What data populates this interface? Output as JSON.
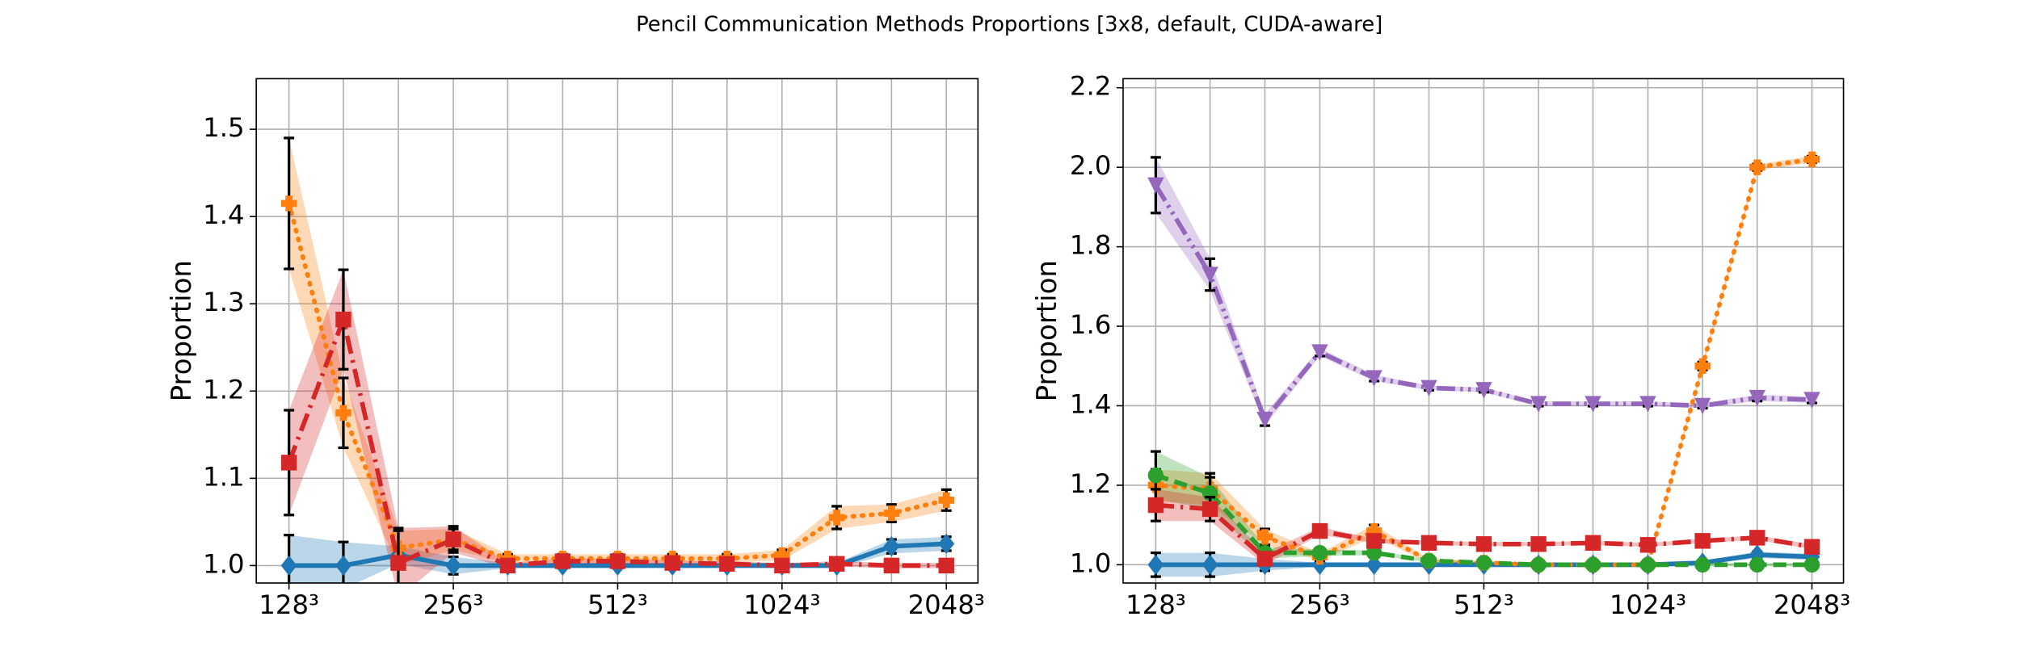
{
  "title": "Pencil Communication Methods Proportions [3x8, default, CUDA-aware]",
  "chart_data": [
    {
      "type": "line",
      "ylabel": "Proportion",
      "xscale": "log",
      "grid": true,
      "x": [
        128,
        161,
        203,
        256,
        322,
        406,
        512,
        645,
        812,
        1024,
        1290,
        1625,
        2048
      ],
      "xlim": [
        111.5,
        2340
      ],
      "xticks": [
        {
          "value": 128,
          "label": "128³"
        },
        {
          "value": 256,
          "label": "256³"
        },
        {
          "value": 512,
          "label": "512³"
        },
        {
          "value": 1024,
          "label": "1024³"
        },
        {
          "value": 2048,
          "label": "2048³"
        }
      ],
      "ylim": [
        0.98,
        1.558
      ],
      "yticks": [
        {
          "value": 1.0,
          "label": "1.0"
        },
        {
          "value": 1.1,
          "label": "1.1"
        },
        {
          "value": 1.2,
          "label": "1.2"
        },
        {
          "value": 1.3,
          "label": "1.3"
        },
        {
          "value": 1.4,
          "label": "1.4"
        },
        {
          "value": 1.5,
          "label": "1.5"
        }
      ],
      "series": [
        {
          "color": "#1f77b4",
          "linestyle": "solid",
          "marker": "diamond",
          "values": [
            1.0,
            1.0,
            1.012,
            1.0,
            1.0,
            1.0,
            1.0,
            1.0,
            1.0,
            1.0,
            1.0,
            1.022,
            1.025
          ],
          "errors": [
            0.035,
            0.027,
            0.01,
            0.01,
            0.003,
            0.003,
            0.003,
            0.003,
            0.003,
            0.003,
            0.003,
            0.008,
            0.008
          ]
        },
        {
          "color": "#ff7f0e",
          "linestyle": "dotted",
          "marker": "plus",
          "values": [
            1.415,
            1.175,
            1.02,
            1.03,
            1.008,
            1.008,
            1.008,
            1.008,
            1.008,
            1.012,
            1.055,
            1.06,
            1.075
          ],
          "errors": [
            0.075,
            0.04,
            0.02,
            0.012,
            0.005,
            0.005,
            0.005,
            0.005,
            0.005,
            0.006,
            0.013,
            0.01,
            0.012
          ]
        },
        {
          "color": "#d62728",
          "linestyle": "dashdot",
          "marker": "square",
          "values": [
            1.118,
            1.282,
            1.003,
            1.03,
            1.0,
            1.005,
            1.005,
            1.003,
            1.002,
            1.0,
            1.002,
            1.0,
            1.0
          ],
          "errors": [
            0.06,
            0.057,
            0.04,
            0.015,
            0.003,
            0.003,
            0.003,
            0.003,
            0.003,
            0.003,
            0.003,
            0.003,
            0.003
          ]
        }
      ]
    },
    {
      "type": "line",
      "ylabel": "Proportion",
      "xscale": "log",
      "grid": true,
      "x": [
        128,
        161,
        203,
        256,
        322,
        406,
        512,
        645,
        812,
        1024,
        1290,
        1625,
        2048
      ],
      "xlim": [
        111.5,
        2340
      ],
      "xticks": [
        {
          "value": 128,
          "label": "128³"
        },
        {
          "value": 256,
          "label": "256³"
        },
        {
          "value": 512,
          "label": "512³"
        },
        {
          "value": 1024,
          "label": "1024³"
        },
        {
          "value": 2048,
          "label": "2048³"
        }
      ],
      "ylim": [
        0.954,
        2.223
      ],
      "yticks": [
        {
          "value": 1.0,
          "label": "1.0"
        },
        {
          "value": 1.2,
          "label": "1.2"
        },
        {
          "value": 1.4,
          "label": "1.4"
        },
        {
          "value": 1.6,
          "label": "1.6"
        },
        {
          "value": 1.8,
          "label": "1.8"
        },
        {
          "value": 2.0,
          "label": "2.0"
        },
        {
          "value": 2.2,
          "label": "2.2"
        }
      ],
      "series": [
        {
          "color": "#1f77b4",
          "linestyle": "solid",
          "marker": "diamond",
          "values": [
            1.0,
            1.0,
            1.0,
            1.0,
            1.0,
            1.0,
            1.0,
            1.0,
            1.0,
            1.0,
            1.005,
            1.025,
            1.02
          ],
          "errors": [
            0.03,
            0.03,
            0.015,
            0.005,
            0.004,
            0.004,
            0.004,
            0.004,
            0.004,
            0.004,
            0.005,
            0.008,
            0.008
          ]
        },
        {
          "color": "#ff7f0e",
          "linestyle": "dotted",
          "marker": "plus",
          "values": [
            1.2,
            1.19,
            1.07,
            1.02,
            1.085,
            1.01,
            1.005,
            1.0,
            1.0,
            1.0,
            1.5,
            2.0,
            2.02
          ],
          "errors": [
            0.04,
            0.04,
            0.02,
            0.01,
            0.015,
            0.005,
            0.004,
            0.004,
            0.004,
            0.004,
            0.01,
            0.008,
            0.008
          ]
        },
        {
          "color": "#2ca02c",
          "linestyle": "dashed",
          "marker": "circle",
          "values": [
            1.225,
            1.18,
            1.03,
            1.03,
            1.03,
            1.01,
            1.005,
            1.0,
            1.0,
            1.0,
            1.0,
            1.0,
            1.0
          ],
          "errors": [
            0.06,
            0.04,
            0.015,
            0.008,
            0.006,
            0.004,
            0.004,
            0.004,
            0.004,
            0.004,
            0.004,
            0.004,
            0.004
          ]
        },
        {
          "color": "#d62728",
          "linestyle": "dashdot",
          "marker": "square",
          "values": [
            1.15,
            1.14,
            1.015,
            1.085,
            1.06,
            1.055,
            1.052,
            1.052,
            1.055,
            1.05,
            1.06,
            1.068,
            1.045
          ],
          "errors": [
            0.04,
            0.03,
            0.015,
            0.01,
            0.006,
            0.005,
            0.005,
            0.005,
            0.005,
            0.005,
            0.005,
            0.006,
            0.006
          ]
        },
        {
          "color": "#9467bd",
          "linestyle": "dashdotdot",
          "marker": "triangle-down",
          "values": [
            1.955,
            1.73,
            1.365,
            1.535,
            1.47,
            1.445,
            1.44,
            1.405,
            1.405,
            1.405,
            1.4,
            1.42,
            1.415
          ],
          "errors": [
            0.07,
            0.04,
            0.015,
            0.01,
            0.008,
            0.006,
            0.006,
            0.006,
            0.006,
            0.006,
            0.006,
            0.008,
            0.008
          ]
        }
      ]
    }
  ]
}
